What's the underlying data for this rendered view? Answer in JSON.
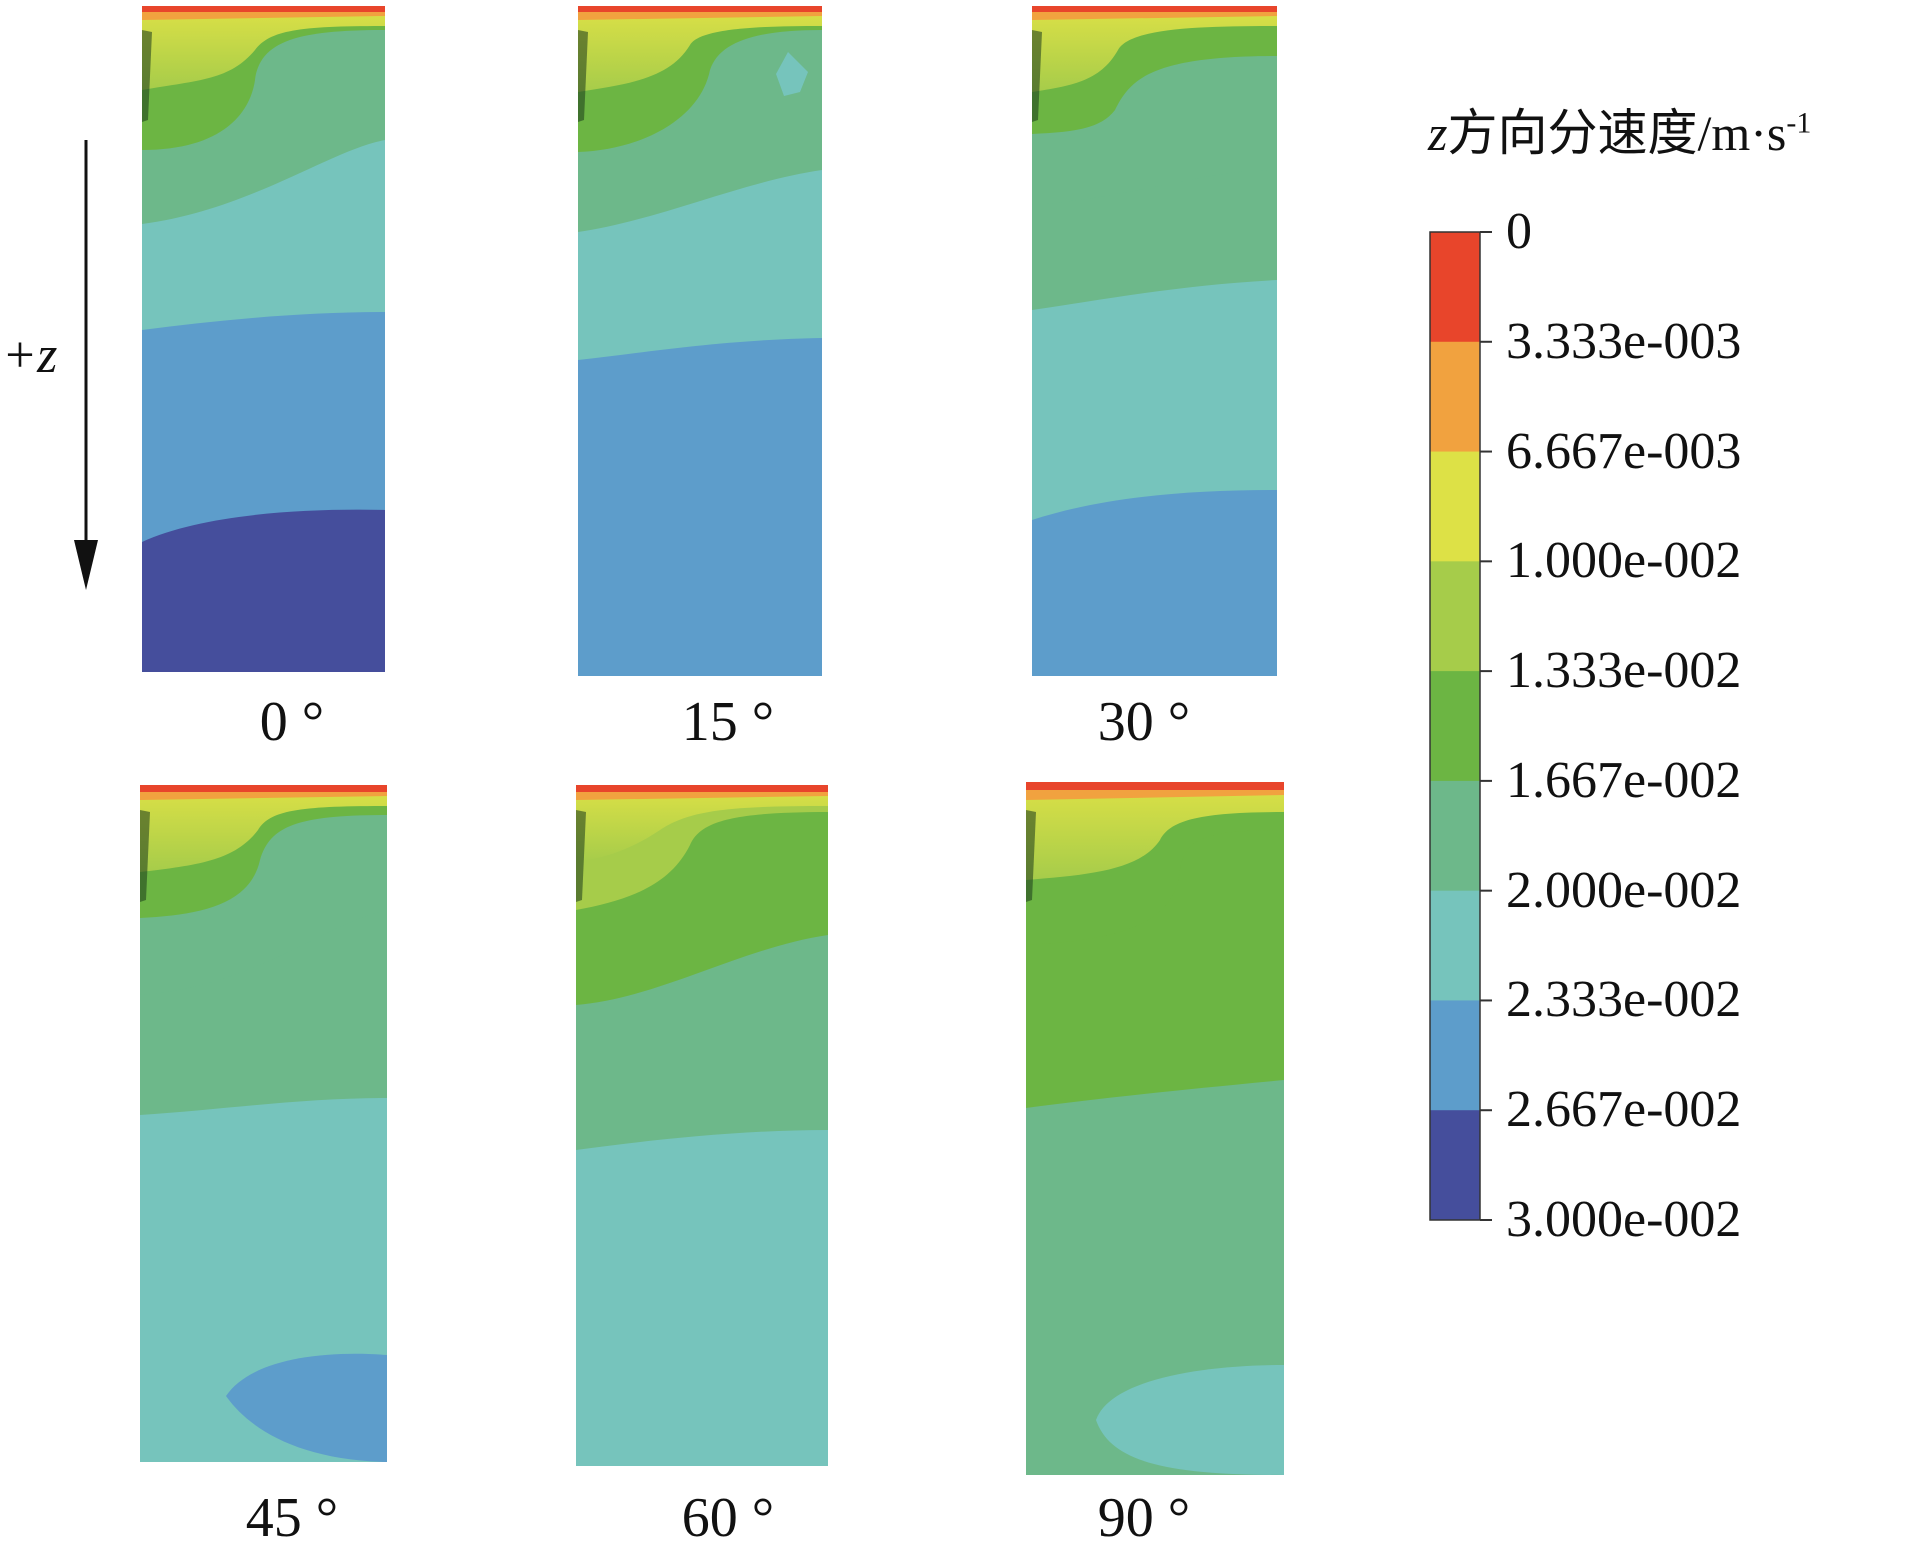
{
  "axis": {
    "label": "+z"
  },
  "legend": {
    "title_var": "z",
    "title_rest": "方向分速度/m·s",
    "title_exp": "-1",
    "ticks": [
      "0",
      "3.333e-003",
      "6.667e-003",
      "1.000e-002",
      "1.333e-002",
      "1.667e-002",
      "2.000e-002",
      "2.333e-002",
      "2.667e-002",
      "3.000e-002"
    ],
    "colors": [
      "#e8452b",
      "#f1a23f",
      "#dde146",
      "#a6cc4a",
      "#6cb543",
      "#6db88a",
      "#76c4bc",
      "#5d9dcb",
      "#454e9c"
    ]
  },
  "panels": [
    {
      "label": "0 °"
    },
    {
      "label": "15 °"
    },
    {
      "label": "30 °"
    },
    {
      "label": "45 °"
    },
    {
      "label": "60 °"
    },
    {
      "label": "90 °"
    }
  ]
}
